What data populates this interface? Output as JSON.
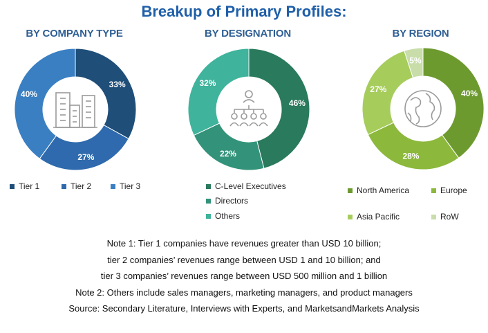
{
  "title": "Breakup of Primary Profiles:",
  "chart_data": [
    {
      "type": "pie",
      "title": "BY COMPANY TYPE",
      "categories": [
        "Tier 1",
        "Tier 2",
        "Tier 3"
      ],
      "values": [
        33,
        27,
        40
      ],
      "value_labels": [
        "33%",
        "27%",
        "40%"
      ],
      "colors": [
        "#1f4e79",
        "#2e6aad",
        "#3a7fc2"
      ],
      "center_icon": "buildings-icon"
    },
    {
      "type": "pie",
      "title": "BY DESIGNATION",
      "categories": [
        "C-Level Executives",
        "Directors",
        "Others"
      ],
      "values": [
        46,
        22,
        32
      ],
      "value_labels": [
        "46%",
        "22%",
        "32%"
      ],
      "colors": [
        "#2a7a5d",
        "#33937a",
        "#3fb39c"
      ],
      "center_icon": "people-hierarchy-icon"
    },
    {
      "type": "pie",
      "title": "BY REGION",
      "categories": [
        "North America",
        "Europe",
        "Asia Pacific",
        "RoW"
      ],
      "values": [
        40,
        28,
        27,
        5
      ],
      "value_labels": [
        "40%",
        "28%",
        "27%",
        "5%"
      ],
      "colors": [
        "#6d9a2f",
        "#8cb83c",
        "#a6cd5c",
        "#c8ddaa"
      ],
      "center_icon": "globe-icon"
    }
  ],
  "notes": [
    "Note 1: Tier 1 companies have revenues greater than USD 10 billion;",
    "tier 2 companies’ revenues range between USD 1 and 10 billion; and",
    "tier 3 companies’ revenues range between USD 500 million and 1 billion",
    "Note 2: Others include sales managers, marketing managers, and product managers",
    "Source: Secondary Literature, Interviews with Experts, and MarketsandMarkets Analysis"
  ]
}
